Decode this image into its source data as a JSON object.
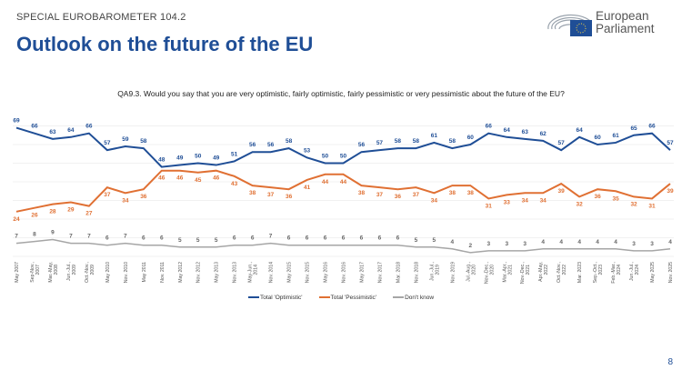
{
  "header": {
    "kicker": "SPECIAL EUROBAROMETER 104.2",
    "title": "Outlook on the future of the EU",
    "logo_text_1": "European",
    "logo_text_2": "Parliament"
  },
  "page_number": "8",
  "chart_data": {
    "type": "line",
    "title": "QA9.3. Would you say that you are very optimistic, fairly optimistic, fairly pessimistic or very pessimistic about the future of the EU?",
    "categories": [
      "May 2007",
      "Sep-Nov. 2007",
      "Mar.-May 2008",
      "Jun.-Jul. 2009",
      "Oct.-Nov. 2009",
      "May 2010",
      "Nov. 2010",
      "May 2011",
      "Nov. 2011",
      "May 2012",
      "Nov. 2012",
      "May 2013",
      "Nov. 2013",
      "May-Jun. 2014",
      "Nov. 2014",
      "May 2015",
      "Nov. 2015",
      "May 2016",
      "Nov. 2016",
      "May 2017",
      "Nov. 2017",
      "Mar. 2018",
      "Nov. 2018",
      "Jun.-Jul. 2019",
      "Nov. 2019",
      "Jul.-Aug. 2020",
      "Nov.-Dec. 2020",
      "Mar.-Apr. 2021",
      "Nov.-Dec. 2021",
      "Apr.-May 2022",
      "Oct.-Nov. 2022",
      "Mar. 2023",
      "Sep.-Oct. 2023",
      "Feb.-Mar. 2024",
      "Jun.-Jul. 2024",
      "May 2025",
      "Nov. 2025"
    ],
    "series": [
      {
        "name": "Total 'Optimistic'",
        "color": "#1f4e96",
        "values": [
          69,
          66,
          63,
          64,
          66,
          57,
          59,
          58,
          48,
          49,
          50,
          49,
          51,
          56,
          56,
          58,
          53,
          50,
          50,
          56,
          57,
          58,
          58,
          61,
          58,
          60,
          66,
          64,
          63,
          62,
          57,
          64,
          60,
          61,
          65,
          66,
          57
        ]
      },
      {
        "name": "Total 'Pessimistic'",
        "color": "#e07033",
        "values": [
          24,
          26,
          28,
          29,
          27,
          37,
          34,
          36,
          46,
          46,
          45,
          46,
          43,
          38,
          37,
          36,
          41,
          44,
          44,
          38,
          37,
          36,
          37,
          34,
          38,
          38,
          31,
          33,
          34,
          34,
          39,
          32,
          36,
          35,
          32,
          31,
          39
        ]
      },
      {
        "name": "Don't know",
        "color": "#a6a6a6",
        "values": [
          7,
          8,
          9,
          7,
          7,
          6,
          7,
          6,
          6,
          5,
          5,
          5,
          6,
          6,
          7,
          6,
          6,
          6,
          6,
          6,
          6,
          6,
          5,
          5,
          4,
          2,
          3,
          3,
          3,
          4,
          4,
          4,
          4,
          4,
          3,
          3,
          4
        ]
      }
    ],
    "ylim": [
      0,
      70
    ],
    "grid": true,
    "legend": "bottom"
  }
}
